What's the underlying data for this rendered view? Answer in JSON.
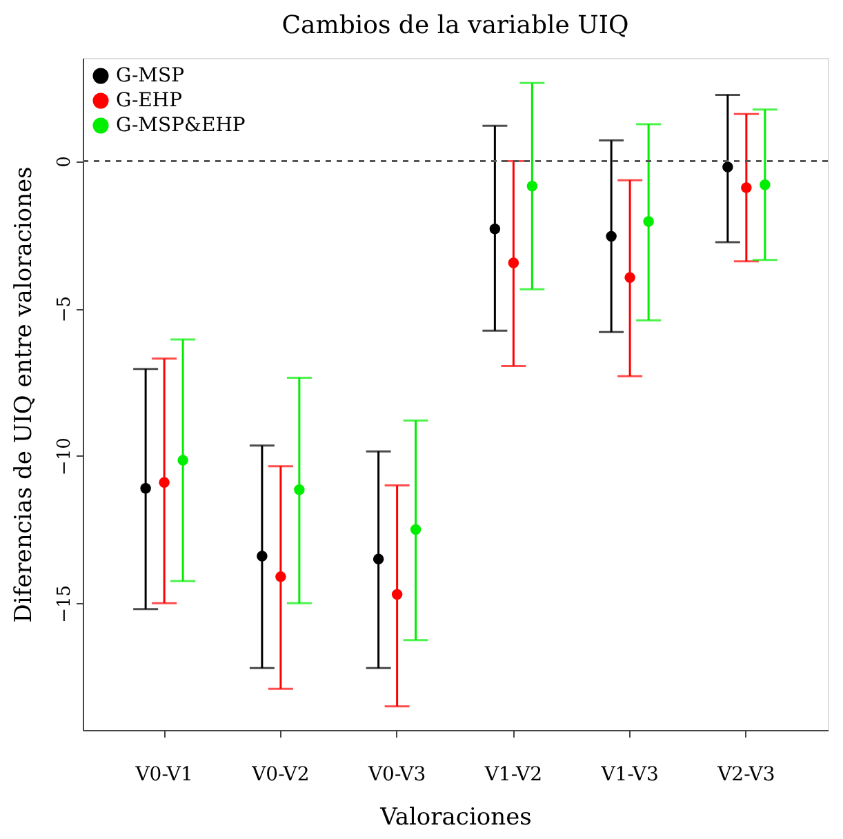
{
  "chart_data": {
    "type": "scatter",
    "title": "Cambios de la variable UIQ",
    "xlabel": "Valoraciones",
    "ylabel": "Diferencias de UIQ entre valoraciones",
    "categories": [
      "V0-V1",
      "V0-V2",
      "V0-V3",
      "V1-V2",
      "V1-V3",
      "V2-V3"
    ],
    "series": [
      {
        "name": "G-MSP",
        "color": "#000000",
        "values": [
          -11.1,
          -13.4,
          -13.5,
          -2.3,
          -2.55,
          -0.2
        ],
        "errors": [
          [
            -15.2,
            -7.05
          ],
          [
            -17.2,
            -9.65
          ],
          [
            -17.2,
            -9.85
          ],
          [
            -5.75,
            1.2
          ],
          [
            -5.8,
            0.7
          ],
          [
            -2.75,
            2.25
          ]
        ]
      },
      {
        "name": "G-EHP",
        "color": "#ff0000",
        "values": [
          -10.9,
          -14.1,
          -14.7,
          -3.45,
          -3.95,
          -0.9
        ],
        "errors": [
          [
            -15.0,
            -6.7
          ],
          [
            -17.9,
            -10.35
          ],
          [
            -18.5,
            -11.0
          ],
          [
            -6.95,
            0.0
          ],
          [
            -7.3,
            -0.65
          ],
          [
            -3.4,
            1.6
          ]
        ]
      },
      {
        "name": "G-MSP&EHP",
        "color": "#00ee00",
        "values": [
          -10.15,
          -11.15,
          -12.5,
          -0.85,
          -2.05,
          -0.8
        ],
        "errors": [
          [
            -14.25,
            -6.05
          ],
          [
            -15.0,
            -7.35
          ],
          [
            -16.25,
            -8.8
          ],
          [
            -4.35,
            2.65
          ],
          [
            -5.4,
            1.25
          ],
          [
            -3.35,
            1.75
          ]
        ]
      }
    ],
    "ylim": [
      -19.3,
      3.5
    ],
    "yticks": [
      0,
      -5,
      -10,
      -15
    ],
    "ref_lines": [
      {
        "axis": "y",
        "value": 0,
        "color": "#555555",
        "line_style": "dashed"
      }
    ],
    "marker": "circle",
    "grid": false,
    "legend": "top left"
  }
}
